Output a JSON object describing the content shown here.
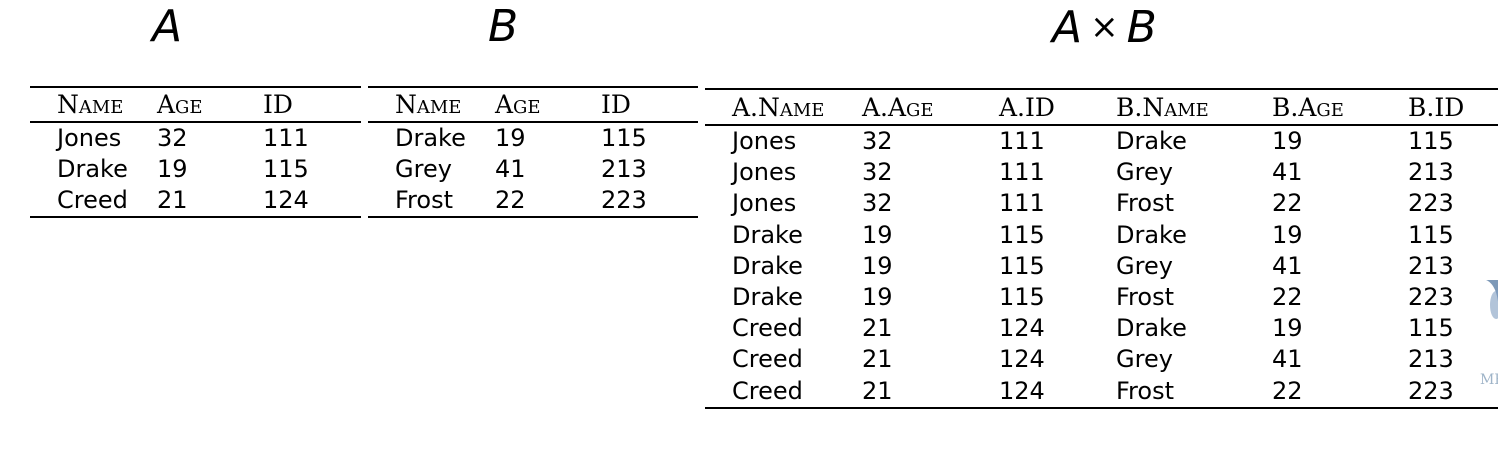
{
  "titles": {
    "a": "A",
    "b": "B",
    "ab_left": "A",
    "ab_op": "×",
    "ab_right": "B"
  },
  "table_a": {
    "headers": [
      "Name",
      "Age",
      "ID"
    ],
    "rows": [
      [
        "Jones",
        "32",
        "111"
      ],
      [
        "Drake",
        "19",
        "115"
      ],
      [
        "Creed",
        "21",
        "124"
      ]
    ]
  },
  "table_b": {
    "headers": [
      "Name",
      "Age",
      "ID"
    ],
    "rows": [
      [
        "Drake",
        "19",
        "115"
      ],
      [
        "Grey",
        "41",
        "213"
      ],
      [
        "Frost",
        "22",
        "223"
      ]
    ]
  },
  "table_ab": {
    "headers": [
      "A.Name",
      "A.Age",
      "A.ID",
      "B.Name",
      "B.Age",
      "B.ID"
    ],
    "rows": [
      [
        "Jones",
        "32",
        "111",
        "Drake",
        "19",
        "115"
      ],
      [
        "Jones",
        "32",
        "111",
        "Grey",
        "41",
        "213"
      ],
      [
        "Jones",
        "32",
        "111",
        "Frost",
        "22",
        "223"
      ],
      [
        "Drake",
        "19",
        "115",
        "Drake",
        "19",
        "115"
      ],
      [
        "Drake",
        "19",
        "115",
        "Grey",
        "41",
        "213"
      ],
      [
        "Drake",
        "19",
        "115",
        "Frost",
        "22",
        "223"
      ],
      [
        "Creed",
        "21",
        "124",
        "Drake",
        "19",
        "115"
      ],
      [
        "Creed",
        "21",
        "124",
        "Grey",
        "41",
        "213"
      ],
      [
        "Creed",
        "21",
        "124",
        "Frost",
        "22",
        "223"
      ]
    ]
  },
  "emblem": {
    "name": "university-watermark",
    "color": "#9fb4c8",
    "text": "MEL"
  }
}
